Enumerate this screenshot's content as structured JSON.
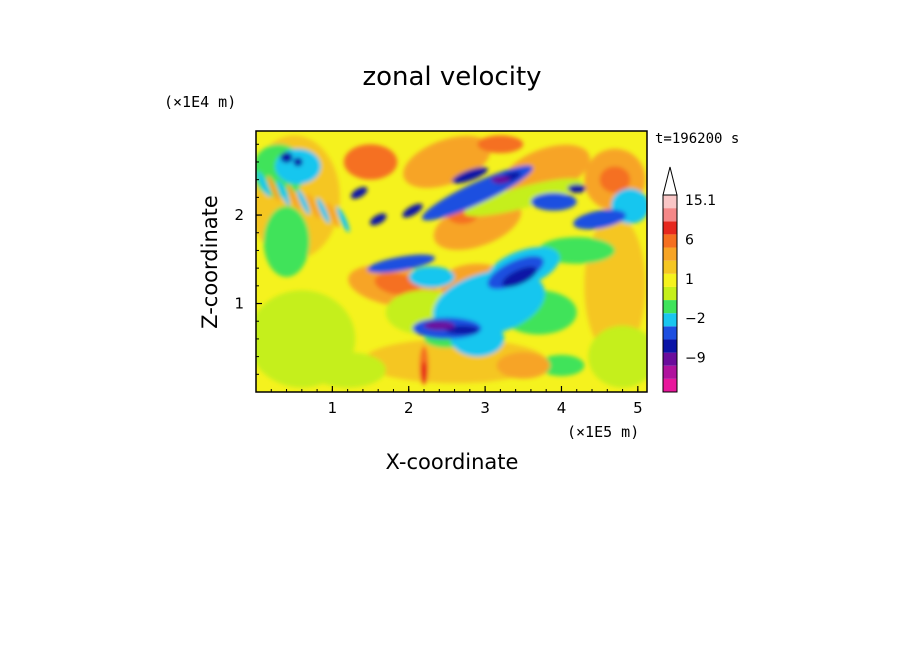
{
  "chart_data": {
    "type": "heatmap",
    "title": "zonal velocity",
    "xlabel": "X-coordinate",
    "ylabel": "Z-coordinate",
    "x_unit": "(×1E5 m)",
    "y_unit": "(×1E4 m)",
    "time_label": "t=196200 s",
    "xlim": [
      0,
      5.12
    ],
    "ylim": [
      0,
      2.95
    ],
    "x_ticks": [
      1,
      2,
      3,
      4,
      5
    ],
    "y_ticks": [
      1,
      2
    ],
    "x_tick_labels": [
      "1",
      "2",
      "3",
      "4",
      "5"
    ],
    "y_tick_labels": [
      "1",
      "2"
    ],
    "colorbar": {
      "levels": [
        -15,
        -12,
        -9,
        -6,
        -4,
        -2,
        -1,
        0,
        1,
        2,
        4,
        6,
        9,
        12,
        15.1
      ],
      "colors": [
        "#e8179c",
        "#b0139e",
        "#6a0d9c",
        "#0a14a6",
        "#1d4fe0",
        "#19c6ef",
        "#3fe35a",
        "#c5ef1a",
        "#f5f21e",
        "#f5c623",
        "#f7a425",
        "#f56f20",
        "#e6281e",
        "#f58888",
        "#f9c6c6"
      ],
      "labels": [
        "15.1",
        "6",
        "1",
        "−2",
        "−9"
      ],
      "label_values": [
        15.1,
        6,
        1,
        -2,
        -9
      ],
      "extend": "max"
    }
  }
}
